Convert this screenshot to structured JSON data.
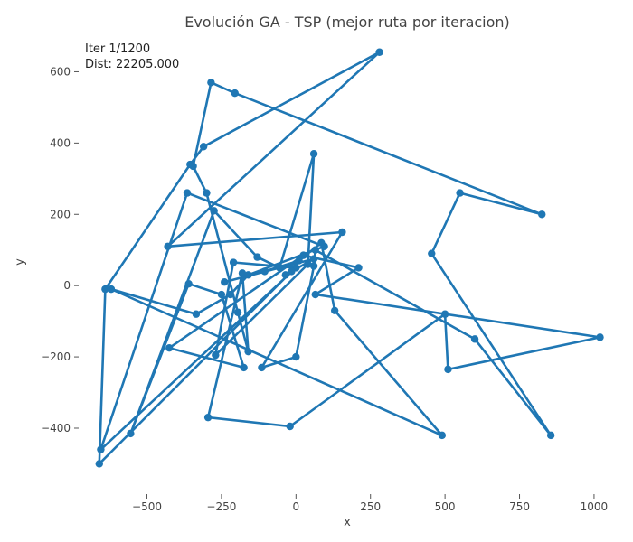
{
  "chart_data": {
    "type": "line",
    "title": "Evolución GA - TSP (mejor ruta por iteracion)",
    "xlabel": "x",
    "ylabel": "y",
    "annotation_lines": [
      "Iter 1/1200",
      "Dist: 22205.000"
    ],
    "xlim": [
      -720,
      1070
    ],
    "ylim": [
      -580,
      700
    ],
    "xticks": [
      {
        "value": -500,
        "label": "−500"
      },
      {
        "value": -250,
        "label": "−250"
      },
      {
        "value": 0,
        "label": "0"
      },
      {
        "value": 250,
        "label": "250"
      },
      {
        "value": 500,
        "label": "500"
      },
      {
        "value": 750,
        "label": "750"
      },
      {
        "value": 1000,
        "label": "1000"
      }
    ],
    "yticks": [
      {
        "value": -400,
        "label": "−400"
      },
      {
        "value": -200,
        "label": "−200"
      },
      {
        "value": 0,
        "label": "0"
      },
      {
        "value": 200,
        "label": "200"
      },
      {
        "value": 400,
        "label": "400"
      },
      {
        "value": 600,
        "label": "600"
      }
    ],
    "grid": false,
    "color": "#1f77b4",
    "series": [
      {
        "x": [
          -660,
          -640,
          -355,
          -310,
          280,
          -430,
          155,
          -115,
          0,
          60,
          65,
          600,
          855,
          455,
          550,
          825,
          -205,
          -285,
          -345,
          -300,
          -195,
          -160,
          -180,
          -295,
          -20,
          500,
          510,
          1020,
          65,
          210,
          25,
          -425,
          -175,
          -250,
          -360,
          -555,
          -275,
          -130,
          -55,
          60,
          40,
          -270,
          -210,
          0,
          -655,
          -365,
          95,
          -160,
          -220,
          -335,
          -620,
          490,
          130,
          85,
          10,
          -105,
          -240,
          60,
          -35,
          -15
        ],
        "y": [
          -500,
          -10,
          340,
          390,
          655,
          110,
          150,
          -230,
          -200,
          55,
          100,
          -150,
          -420,
          90,
          260,
          200,
          540,
          570,
          335,
          260,
          -75,
          -185,
          35,
          -370,
          -395,
          -80,
          -235,
          -145,
          -25,
          50,
          85,
          -175,
          -230,
          -25,
          5,
          -415,
          210,
          80,
          50,
          370,
          60,
          -195,
          65,
          50,
          -460,
          260,
          110,
          30,
          -25,
          -80,
          -10,
          -420,
          -70,
          120,
          70,
          40,
          10,
          75,
          30,
          40
        ]
      }
    ]
  }
}
